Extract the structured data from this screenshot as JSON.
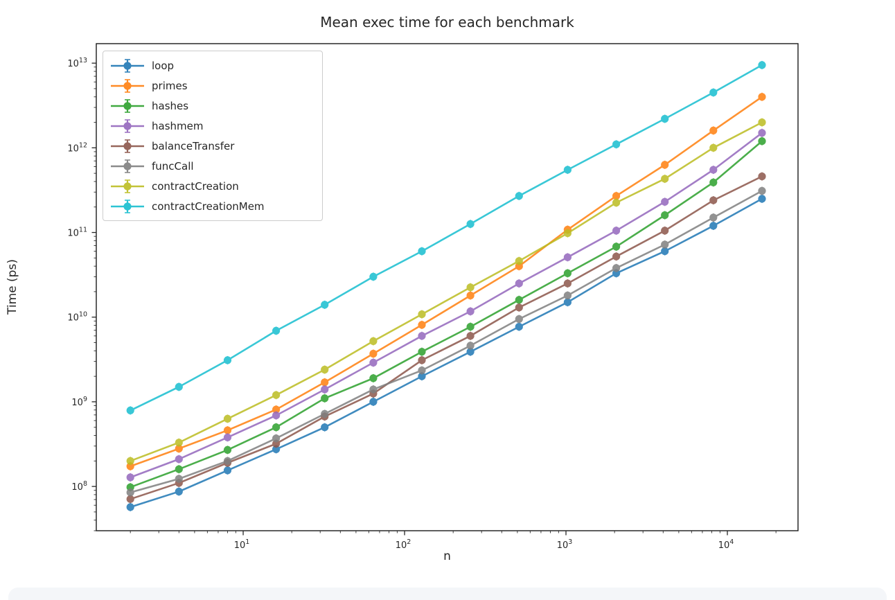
{
  "page": {
    "background": "#ffffff",
    "bottom_strip_color": "#f4f6f9"
  },
  "chart_data": {
    "type": "line",
    "title": "Mean exec time for each benchmark",
    "xlabel": "n",
    "ylabel": "Time (ps)",
    "x_scale": "log",
    "y_scale": "log",
    "grid": false,
    "marker": "o",
    "error_bars": true,
    "legend_position": "upper left",
    "xlim": [
      1.23,
      27400
    ],
    "ylim": [
      30000000.0,
      17000000000000.0
    ],
    "x_major_ticks": [
      10,
      100,
      1000,
      10000
    ],
    "y_major_ticks": [
      100000000.0,
      1000000000.0,
      10000000000.0,
      100000000000.0,
      1000000000000.0,
      10000000000000.0
    ],
    "x": [
      2,
      4,
      8,
      16,
      32,
      64,
      128,
      256,
      512,
      1024,
      2048,
      4096,
      8192,
      16384
    ],
    "series": [
      {
        "name": "loop",
        "color": "#1f77b4",
        "values": [
          57000000.0,
          87000000.0,
          155000000.0,
          275000000.0,
          500000000.0,
          1000000000.0,
          2000000000.0,
          3900000000.0,
          7700000000.0,
          15000000000.0,
          33000000000.0,
          60000000000.0,
          120000000000.0,
          250000000000.0
        ]
      },
      {
        "name": "primes",
        "color": "#ff7f0e",
        "values": [
          173000000.0,
          280000000.0,
          460000000.0,
          810000000.0,
          1700000000.0,
          3700000000.0,
          8100000000.0,
          18000000000.0,
          40000000000.0,
          108000000000.0,
          270000000000.0,
          630000000000.0,
          1600000000000.0,
          4000000000000.0
        ]
      },
      {
        "name": "hashes",
        "color": "#2ca02c",
        "values": [
          98000000.0,
          160000000.0,
          270000000.0,
          500000000.0,
          1100000000.0,
          1900000000.0,
          3900000000.0,
          7700000000.0,
          16000000000.0,
          33000000000.0,
          68000000000.0,
          160000000000.0,
          390000000000.0,
          1200000000000.0
        ]
      },
      {
        "name": "hashmem",
        "color": "#9467bd",
        "values": [
          128000000.0,
          210000000.0,
          380000000.0,
          690000000.0,
          1400000000.0,
          2900000000.0,
          6000000000.0,
          11700000000.0,
          25000000000.0,
          51000000000.0,
          105000000000.0,
          230000000000.0,
          550000000000.0,
          1500000000000.0
        ]
      },
      {
        "name": "balanceTransfer",
        "color": "#8c564b",
        "values": [
          71000000.0,
          110000000.0,
          190000000.0,
          320000000.0,
          670000000.0,
          1250000000.0,
          3100000000.0,
          6000000000.0,
          13000000000.0,
          25000000000.0,
          52000000000.0,
          105000000000.0,
          240000000000.0,
          460000000000.0
        ]
      },
      {
        "name": "funcCall",
        "color": "#7f7f7f",
        "values": [
          85000000.0,
          123000000.0,
          200000000.0,
          370000000.0,
          720000000.0,
          1400000000.0,
          2350000000.0,
          4600000000.0,
          9500000000.0,
          18000000000.0,
          38000000000.0,
          72000000000.0,
          150000000000.0,
          310000000000.0
        ]
      },
      {
        "name": "contractCreation",
        "color": "#bcbd22",
        "values": [
          200000000.0,
          330000000.0,
          630000000.0,
          1200000000.0,
          2400000000.0,
          5200000000.0,
          10800000000.0,
          22500000000.0,
          46000000000.0,
          98000000000.0,
          225000000000.0,
          430000000000.0,
          1000000000000.0,
          2000000000000.0
        ]
      },
      {
        "name": "contractCreationMem",
        "color": "#17becf",
        "values": [
          790000000.0,
          1500000000.0,
          3100000000.0,
          6900000000.0,
          14000000000.0,
          30000000000.0,
          60000000000.0,
          126000000000.0,
          270000000000.0,
          550000000000.0,
          1100000000000.0,
          2200000000000.0,
          4500000000000.0,
          9500000000000.0
        ]
      }
    ]
  }
}
